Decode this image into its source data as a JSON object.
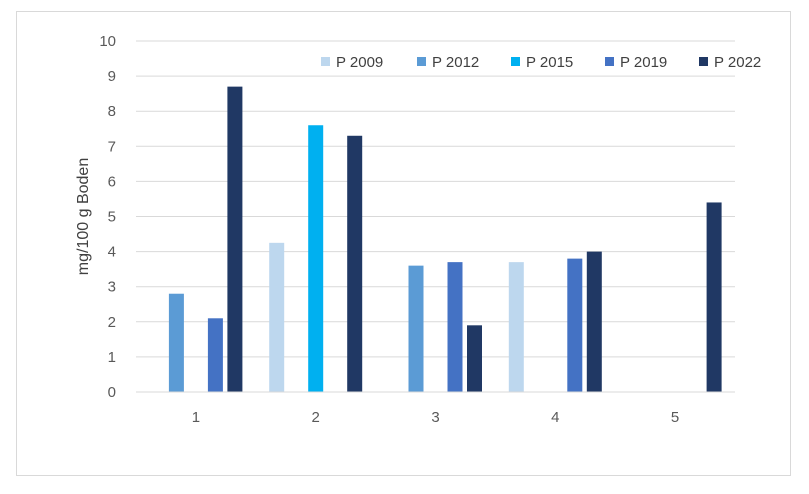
{
  "chart_data": {
    "type": "bar",
    "categories": [
      "1",
      "2",
      "3",
      "4",
      "5"
    ],
    "series": [
      {
        "name": "P 2009",
        "color": "#bdd7ee",
        "values": [
          null,
          4.25,
          null,
          3.7,
          null
        ]
      },
      {
        "name": "P 2012",
        "color": "#5b9bd5",
        "values": [
          2.8,
          null,
          3.6,
          null,
          null
        ]
      },
      {
        "name": "P 2015",
        "color": "#00b0f0",
        "values": [
          null,
          7.6,
          null,
          null,
          null
        ]
      },
      {
        "name": "P 2019",
        "color": "#4472c4",
        "values": [
          2.1,
          null,
          3.7,
          3.8,
          null
        ]
      },
      {
        "name": "P 2022",
        "color": "#203864",
        "values": [
          8.7,
          7.3,
          1.9,
          4.0,
          5.4
        ]
      }
    ],
    "ylabel": "mg/100 g Boden",
    "xlabel": "",
    "title": "",
    "ylim": [
      0,
      10
    ],
    "yticks": [
      "0",
      "1",
      "2",
      "3",
      "4",
      "5",
      "6",
      "7",
      "8",
      "9",
      "10"
    ],
    "grid": true,
    "legend": "top-right"
  }
}
